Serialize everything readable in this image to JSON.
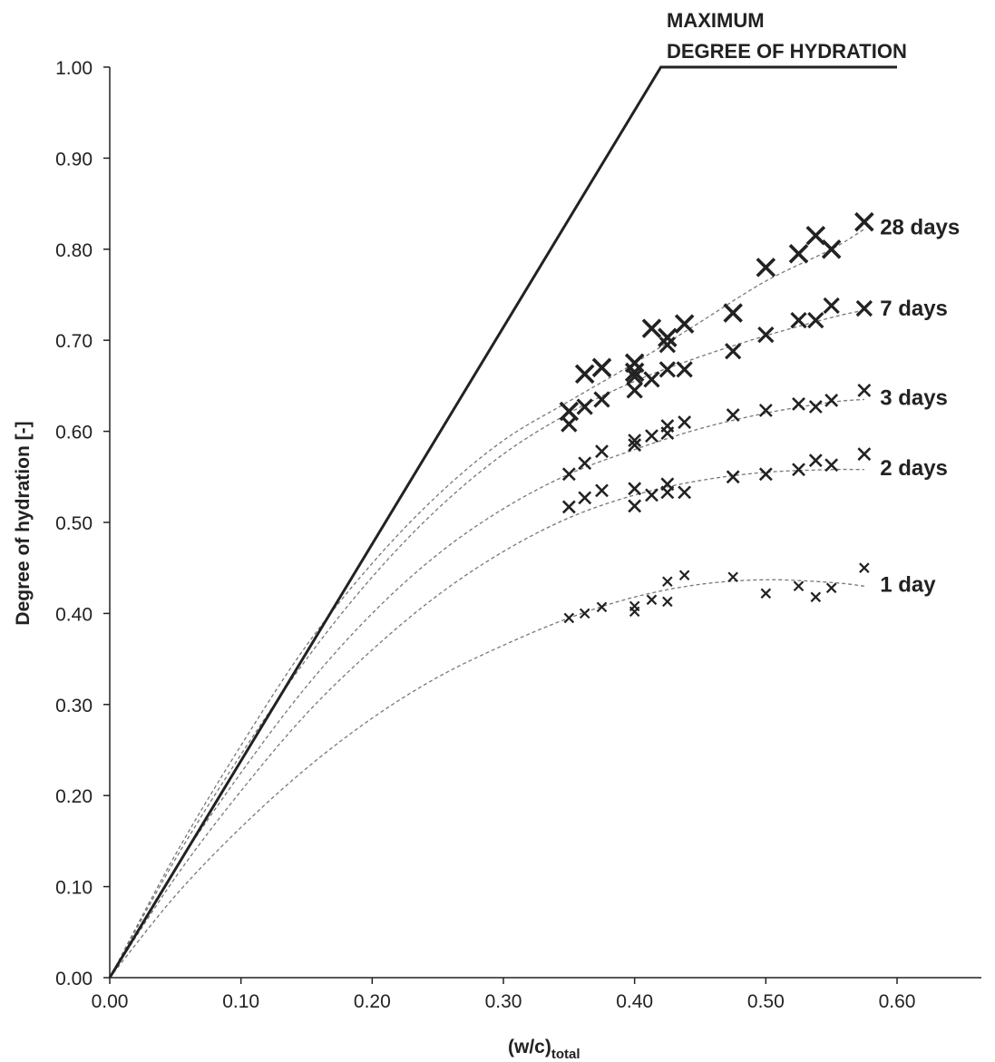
{
  "chart_data": {
    "type": "scatter",
    "title": "",
    "xlabel_main": "(w/c)",
    "xlabel_sub": "total",
    "ylabel": "Degree of hydration [-]",
    "xlim": [
      0,
      0.6
    ],
    "ylim": [
      0,
      1.0
    ],
    "xticks": [
      "0.00",
      "0.10",
      "0.20",
      "0.30",
      "0.40",
      "0.50",
      "0.60"
    ],
    "yticks": [
      "0.00",
      "0.10",
      "0.20",
      "0.30",
      "0.40",
      "0.50",
      "0.60",
      "0.70",
      "0.80",
      "0.90",
      "1.00"
    ],
    "max_line": {
      "label_line1": "MAXIMUM",
      "label_line2": "DEGREE OF HYDRATION",
      "points": [
        [
          0,
          0
        ],
        [
          0.42,
          1.0
        ],
        [
          0.6,
          1.0
        ]
      ]
    },
    "series": [
      {
        "name": "1 day",
        "marker_size": "small",
        "x": [
          0.35,
          0.362,
          0.375,
          0.4,
          0.4,
          0.413,
          0.425,
          0.425,
          0.438,
          0.475,
          0.5,
          0.525,
          0.538,
          0.55,
          0.575
        ],
        "y": [
          0.395,
          0.4,
          0.407,
          0.402,
          0.408,
          0.415,
          0.413,
          0.435,
          0.442,
          0.44,
          0.422,
          0.43,
          0.418,
          0.428,
          0.45
        ],
        "fit": [
          [
            0,
            0
          ],
          [
            0.05,
            0.09
          ],
          [
            0.1,
            0.165
          ],
          [
            0.15,
            0.23
          ],
          [
            0.2,
            0.285
          ],
          [
            0.25,
            0.33
          ],
          [
            0.3,
            0.365
          ],
          [
            0.35,
            0.395
          ],
          [
            0.4,
            0.418
          ],
          [
            0.45,
            0.432
          ],
          [
            0.5,
            0.437
          ],
          [
            0.55,
            0.434
          ],
          [
            0.575,
            0.43
          ]
        ]
      },
      {
        "name": "2 days",
        "marker_size": "medium",
        "x": [
          0.35,
          0.362,
          0.375,
          0.4,
          0.4,
          0.413,
          0.425,
          0.425,
          0.438,
          0.475,
          0.5,
          0.525,
          0.538,
          0.55,
          0.575
        ],
        "y": [
          0.517,
          0.527,
          0.535,
          0.518,
          0.537,
          0.53,
          0.533,
          0.542,
          0.533,
          0.55,
          0.553,
          0.558,
          0.568,
          0.563,
          0.575
        ],
        "fit": [
          [
            0,
            0
          ],
          [
            0.05,
            0.11
          ],
          [
            0.1,
            0.205
          ],
          [
            0.15,
            0.29
          ],
          [
            0.2,
            0.36
          ],
          [
            0.25,
            0.42
          ],
          [
            0.3,
            0.468
          ],
          [
            0.35,
            0.505
          ],
          [
            0.4,
            0.53
          ],
          [
            0.45,
            0.546
          ],
          [
            0.5,
            0.555
          ],
          [
            0.55,
            0.558
          ],
          [
            0.575,
            0.558
          ]
        ]
      },
      {
        "name": "3 days",
        "marker_size": "medium",
        "x": [
          0.35,
          0.362,
          0.375,
          0.4,
          0.4,
          0.413,
          0.425,
          0.425,
          0.438,
          0.475,
          0.5,
          0.525,
          0.538,
          0.55,
          0.575
        ],
        "y": [
          0.553,
          0.565,
          0.578,
          0.585,
          0.59,
          0.595,
          0.598,
          0.606,
          0.61,
          0.618,
          0.623,
          0.63,
          0.627,
          0.634,
          0.645
        ],
        "fit": [
          [
            0,
            0
          ],
          [
            0.05,
            0.12
          ],
          [
            0.1,
            0.225
          ],
          [
            0.15,
            0.32
          ],
          [
            0.2,
            0.4
          ],
          [
            0.25,
            0.465
          ],
          [
            0.3,
            0.515
          ],
          [
            0.35,
            0.553
          ],
          [
            0.4,
            0.58
          ],
          [
            0.45,
            0.603
          ],
          [
            0.5,
            0.62
          ],
          [
            0.55,
            0.632
          ],
          [
            0.575,
            0.635
          ]
        ]
      },
      {
        "name": "7 days",
        "marker_size": "large",
        "x": [
          0.35,
          0.362,
          0.375,
          0.4,
          0.4,
          0.413,
          0.425,
          0.425,
          0.438,
          0.475,
          0.5,
          0.525,
          0.538,
          0.55,
          0.575
        ],
        "y": [
          0.608,
          0.627,
          0.635,
          0.645,
          0.66,
          0.657,
          0.668,
          0.695,
          0.668,
          0.688,
          0.706,
          0.722,
          0.722,
          0.738,
          0.735
        ],
        "fit": [
          [
            0,
            0
          ],
          [
            0.05,
            0.13
          ],
          [
            0.1,
            0.245
          ],
          [
            0.15,
            0.35
          ],
          [
            0.2,
            0.44
          ],
          [
            0.25,
            0.515
          ],
          [
            0.3,
            0.575
          ],
          [
            0.35,
            0.62
          ],
          [
            0.4,
            0.655
          ],
          [
            0.45,
            0.682
          ],
          [
            0.5,
            0.705
          ],
          [
            0.55,
            0.725
          ],
          [
            0.575,
            0.733
          ]
        ]
      },
      {
        "name": "28 days",
        "marker_size": "xlarge",
        "x": [
          0.35,
          0.362,
          0.375,
          0.4,
          0.4,
          0.413,
          0.425,
          0.438,
          0.475,
          0.5,
          0.525,
          0.538,
          0.55,
          0.575
        ],
        "y": [
          0.622,
          0.663,
          0.67,
          0.675,
          0.665,
          0.713,
          0.703,
          0.718,
          0.73,
          0.78,
          0.795,
          0.815,
          0.8,
          0.83
        ],
        "fit": [
          [
            0,
            0
          ],
          [
            0.05,
            0.135
          ],
          [
            0.1,
            0.255
          ],
          [
            0.15,
            0.365
          ],
          [
            0.2,
            0.455
          ],
          [
            0.25,
            0.53
          ],
          [
            0.3,
            0.59
          ],
          [
            0.35,
            0.633
          ],
          [
            0.4,
            0.675
          ],
          [
            0.45,
            0.72
          ],
          [
            0.5,
            0.765
          ],
          [
            0.55,
            0.8
          ],
          [
            0.575,
            0.822
          ]
        ]
      }
    ]
  }
}
